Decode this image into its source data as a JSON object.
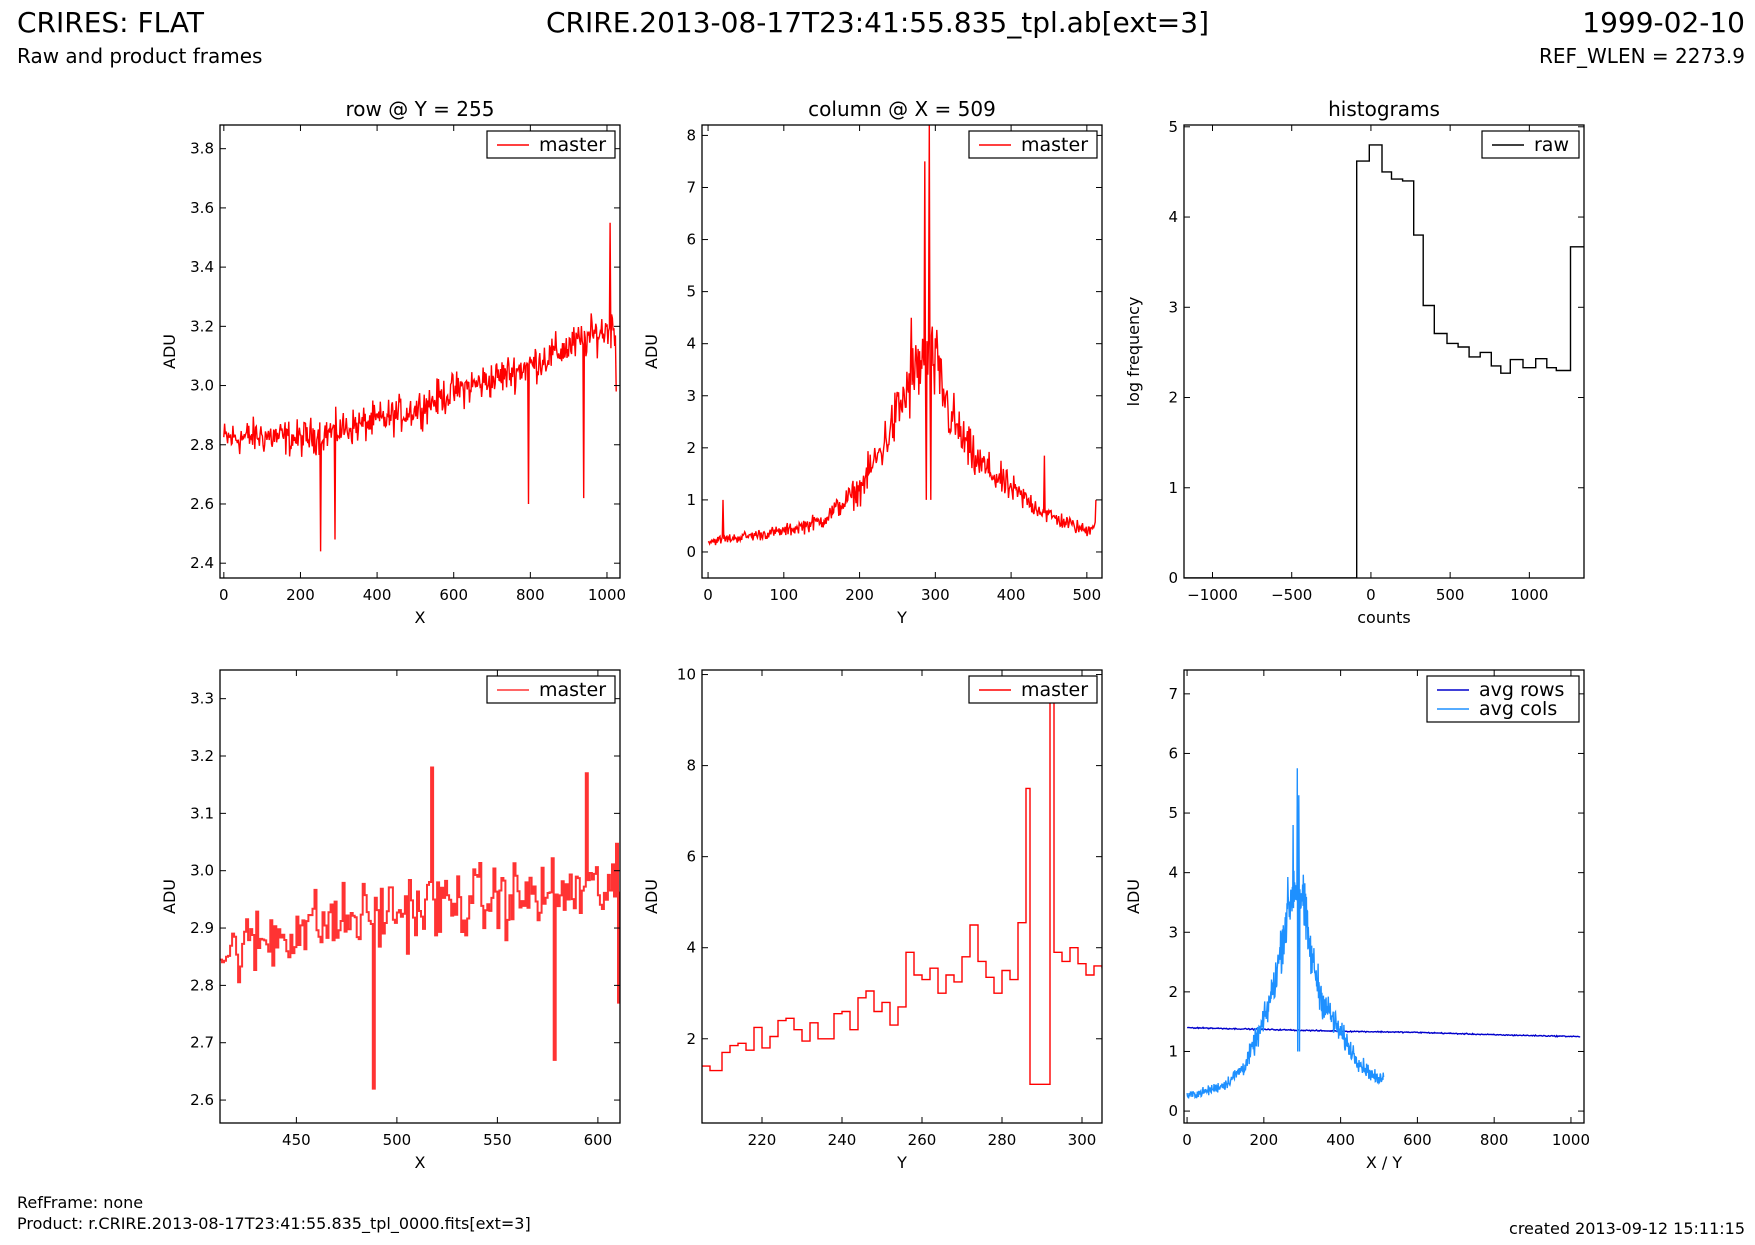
{
  "header": {
    "title": "CRIRES: FLAT",
    "subtitle": "Raw and product frames",
    "file": "CRIRE.2013-08-17T23:41:55.835_tpl.ab[ext=3]",
    "date": "1999-02-10",
    "ref_wlen": "REF_WLEN = 2273.9"
  },
  "footer": {
    "ref_frame": "RefFrame: none",
    "product": "Product: r.CRIRE.2013-08-17T23:41:55.835_tpl_0000.fits[ext=3]",
    "created": "created 2013-09-12 15:11:15"
  },
  "colors": {
    "master": "#ff0000",
    "raw": "#000000",
    "avg_rows": "#0000cc",
    "avg_cols": "#1e90ff"
  },
  "chart_data": [
    {
      "id": "row-full",
      "type": "line",
      "title": "row @ Y = 255",
      "xlabel": "X",
      "ylabel": "ADU",
      "xlim": [
        -10,
        1034
      ],
      "ylim": [
        2.35,
        3.88
      ],
      "xticks": [
        0,
        200,
        400,
        600,
        800,
        1000
      ],
      "yticks": [
        2.4,
        2.6,
        2.8,
        3.0,
        3.2,
        3.4,
        3.6,
        3.8
      ],
      "ytick_decimals": 1,
      "legend": "top-right",
      "series": [
        {
          "name": "master",
          "color": "#ff0000",
          "style": "noisy",
          "trend_x": [
            0,
            100,
            200,
            300,
            400,
            500,
            600,
            700,
            800,
            900,
            1000,
            1024
          ],
          "trend_y": [
            2.82,
            2.83,
            2.82,
            2.85,
            2.88,
            2.92,
            2.98,
            3.02,
            3.07,
            3.13,
            3.19,
            3.2
          ],
          "noise": 0.09,
          "outliers": [
            [
              253,
              2.44
            ],
            [
              290,
              2.48
            ],
            [
              795,
              2.6
            ],
            [
              940,
              2.62
            ],
            [
              1008,
              3.55
            ],
            [
              1024,
              2.98
            ]
          ]
        }
      ]
    },
    {
      "id": "col-full",
      "type": "line",
      "title": "column @ X = 509",
      "xlabel": "Y",
      "ylabel": "ADU",
      "xlim": [
        -8,
        520
      ],
      "ylim": [
        -0.5,
        8.2
      ],
      "xticks": [
        0,
        100,
        200,
        300,
        400,
        500
      ],
      "yticks": [
        0,
        1,
        2,
        3,
        4,
        5,
        6,
        7,
        8
      ],
      "ytick_decimals": 0,
      "legend": "top-right",
      "series": [
        {
          "name": "master",
          "color": "#ff0000",
          "style": "noisy",
          "trend_x": [
            0,
            50,
            100,
            150,
            200,
            230,
            260,
            280,
            300,
            320,
            350,
            400,
            450,
            500,
            512
          ],
          "trend_y": [
            0.2,
            0.3,
            0.4,
            0.6,
            1.2,
            2.0,
            3.0,
            3.6,
            3.6,
            2.6,
            1.8,
            1.2,
            0.7,
            0.4,
            0.6
          ],
          "noise": 0.12,
          "outliers": [
            [
              20,
              1.0
            ],
            [
              268,
              4.5
            ],
            [
              286,
              7.5
            ],
            [
              288,
              1.0
            ],
            [
              292,
              8.2
            ],
            [
              294,
              1.0
            ],
            [
              444,
              1.85
            ],
            [
              512,
              1.0
            ]
          ]
        }
      ]
    },
    {
      "id": "histogram",
      "type": "bar",
      "title": "histograms",
      "xlabel": "counts",
      "ylabel": "log frequency",
      "xlim": [
        -1180,
        1345
      ],
      "ylim": [
        0,
        5.02
      ],
      "xticks": [
        -1000,
        -500,
        0,
        500,
        1000
      ],
      "yticks": [
        0,
        1,
        2,
        3,
        4,
        5
      ],
      "ytick_decimals": 0,
      "legend": "top-right",
      "series": [
        {
          "name": "raw",
          "color": "#000000",
          "style": "step",
          "x": [
            -1180,
            -90,
            -10,
            70,
            130,
            200,
            270,
            330,
            400,
            480,
            550,
            620,
            690,
            760,
            820,
            880,
            960,
            1040,
            1110,
            1170,
            1260,
            1345
          ],
          "y": [
            0,
            4.62,
            4.8,
            4.5,
            4.42,
            4.4,
            3.8,
            3.02,
            2.71,
            2.6,
            2.56,
            2.45,
            2.5,
            2.35,
            2.27,
            2.42,
            2.33,
            2.43,
            2.33,
            2.3,
            3.67,
            3.67
          ]
        }
      ]
    },
    {
      "id": "row-zoom",
      "type": "line",
      "title": "",
      "xlabel": "X",
      "ylabel": "ADU",
      "xlim": [
        412,
        611
      ],
      "ylim": [
        2.56,
        3.35
      ],
      "xticks": [
        450,
        500,
        550,
        600
      ],
      "yticks": [
        2.6,
        2.7,
        2.8,
        2.9,
        3.0,
        3.1,
        3.2,
        3.3
      ],
      "ytick_decimals": 1,
      "legend": "top-right",
      "series": [
        {
          "name": "master",
          "color": "#ff3333",
          "style": "noisy-step",
          "trend_x": [
            412,
            450,
            500,
            550,
            611
          ],
          "trend_y": [
            2.85,
            2.9,
            2.93,
            2.95,
            2.97
          ],
          "noise": 0.09,
          "outliers": [
            [
              488,
              2.62
            ],
            [
              517,
              3.18
            ],
            [
              578,
              2.67
            ],
            [
              594,
              3.17
            ],
            [
              610,
              2.77
            ]
          ]
        }
      ]
    },
    {
      "id": "col-zoom",
      "type": "line",
      "title": "",
      "xlabel": "Y",
      "ylabel": "ADU",
      "xlim": [
        205,
        305
      ],
      "ylim": [
        0.15,
        10.1
      ],
      "xticks": [
        220,
        240,
        260,
        280,
        300
      ],
      "yticks": [
        2,
        4,
        6,
        8,
        10
      ],
      "ytick_decimals": 0,
      "legend": "top-right",
      "series": [
        {
          "name": "master",
          "color": "#ff0000",
          "style": "step",
          "x": [
            205,
            207,
            210,
            212,
            214,
            216,
            218,
            220,
            222,
            224,
            226,
            228,
            230,
            232,
            234,
            236,
            238,
            240,
            242,
            244,
            246,
            248,
            250,
            252,
            254,
            256,
            258,
            260,
            262,
            264,
            266,
            268,
            270,
            272,
            274,
            276,
            278,
            280,
            282,
            284,
            286,
            287,
            292,
            293,
            295,
            297,
            299,
            301,
            303,
            305
          ],
          "y": [
            1.4,
            1.3,
            1.7,
            1.85,
            1.9,
            1.75,
            2.25,
            1.8,
            2.05,
            2.4,
            2.45,
            2.2,
            1.95,
            2.35,
            2.0,
            2.0,
            2.55,
            2.6,
            2.2,
            2.9,
            3.05,
            2.6,
            2.8,
            2.3,
            2.7,
            3.9,
            3.4,
            3.3,
            3.55,
            3.0,
            3.4,
            3.25,
            3.8,
            4.5,
            3.7,
            3.35,
            3.0,
            3.5,
            3.3,
            4.55,
            7.5,
            1.0,
            9.5,
            3.9,
            3.7,
            4.0,
            3.65,
            3.4,
            3.6,
            3.55
          ]
        }
      ]
    },
    {
      "id": "averages",
      "type": "line",
      "title": "",
      "xlabel": "X / Y",
      "ylabel": "ADU",
      "xlim": [
        -8,
        1034
      ],
      "ylim": [
        -0.2,
        7.4
      ],
      "xticks": [
        0,
        200,
        400,
        600,
        800,
        1000
      ],
      "yticks": [
        0,
        1,
        2,
        3,
        4,
        5,
        6,
        7
      ],
      "ytick_decimals": 0,
      "legend": "top-right",
      "series": [
        {
          "name": "avg rows",
          "color": "#0000cc",
          "style": "noisy",
          "trend_x": [
            0,
            200,
            400,
            600,
            800,
            1024
          ],
          "trend_y": [
            1.4,
            1.37,
            1.34,
            1.32,
            1.28,
            1.25
          ],
          "noise": 0.015,
          "outliers": []
        },
        {
          "name": "avg cols",
          "color": "#1e90ff",
          "style": "noisy",
          "trend_x": [
            0,
            50,
            100,
            150,
            200,
            230,
            260,
            280,
            300,
            320,
            350,
            400,
            450,
            500,
            512
          ],
          "trend_y": [
            0.25,
            0.33,
            0.45,
            0.75,
            1.5,
            2.2,
            3.3,
            3.8,
            3.6,
            2.7,
            1.9,
            1.3,
            0.8,
            0.5,
            0.65
          ],
          "noise": 0.1,
          "outliers": [
            [
              276,
              4.8
            ],
            [
              287,
              5.75
            ],
            [
              288,
              1.0
            ],
            [
              291,
              5.3
            ],
            [
              293,
              1.0
            ]
          ]
        }
      ]
    }
  ]
}
